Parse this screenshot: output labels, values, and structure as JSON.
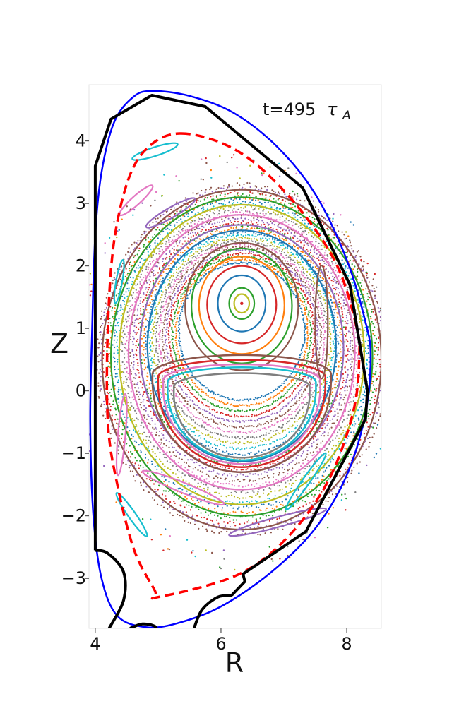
{
  "chart_data": {
    "type": "scatter",
    "xlabel": "R",
    "ylabel": "Z",
    "xlim": [
      3.9,
      8.55
    ],
    "ylim": [
      -3.8,
      4.9
    ],
    "x_ticks": [
      4,
      6,
      8
    ],
    "x_tick_labels": [
      "4",
      "6",
      "8"
    ],
    "y_ticks": [
      -3,
      -2,
      -1,
      0,
      1,
      2,
      3,
      4
    ],
    "y_tick_labels": [
      "−3",
      "−2",
      "−1",
      "0",
      "1",
      "2",
      "3",
      "4"
    ],
    "annotation": {
      "time": "t=495",
      "tau": "τ",
      "tau_sub": "A"
    },
    "grid": false,
    "legend": "none",
    "wall_color": "#000000",
    "last_closed_surface_color": "#ff0000",
    "plasma_boundary_color": "#0000ff",
    "magnetic_axis": [
      6.33,
      1.4
    ],
    "plasma_boundary": [
      [
        4.9,
        4.8
      ],
      [
        5.5,
        4.72
      ],
      [
        6.2,
        4.45
      ],
      [
        6.9,
        3.9
      ],
      [
        7.5,
        3.15
      ],
      [
        8.0,
        2.1
      ],
      [
        8.3,
        1.1
      ],
      [
        8.38,
        0.55
      ],
      [
        8.3,
        -0.35
      ],
      [
        8.0,
        -1.35
      ],
      [
        7.5,
        -2.2
      ],
      [
        6.8,
        -2.9
      ],
      [
        6.0,
        -3.45
      ],
      [
        5.3,
        -3.72
      ],
      [
        4.8,
        -3.78
      ],
      [
        4.35,
        -3.6
      ],
      [
        4.1,
        -3.0
      ],
      [
        3.97,
        -2.0
      ],
      [
        3.92,
        -0.5
      ],
      [
        3.95,
        1.0
      ],
      [
        4.0,
        2.5
      ],
      [
        4.1,
        3.5
      ],
      [
        4.3,
        4.3
      ],
      [
        4.6,
        4.7
      ],
      [
        4.9,
        4.8
      ]
    ],
    "wall": [
      [
        4.0,
        -2.55
      ],
      [
        4.0,
        3.6
      ],
      [
        4.25,
        4.35
      ],
      [
        4.9,
        4.73
      ],
      [
        5.75,
        4.55
      ],
      [
        7.3,
        3.25
      ],
      [
        8.05,
        1.7
      ],
      [
        8.33,
        0.0
      ],
      [
        8.3,
        -0.45
      ],
      [
        7.35,
        -2.25
      ],
      [
        6.35,
        -2.93
      ],
      [
        6.38,
        -3.05
      ],
      [
        6.17,
        -3.27
      ]
    ],
    "wall_dome": [
      [
        4.0,
        -2.55
      ],
      [
        4.2,
        -2.6
      ],
      [
        4.45,
        -2.9
      ],
      [
        4.45,
        -3.35
      ],
      [
        4.22,
        -3.8
      ]
    ],
    "wall_dome2": [
      [
        5.0,
        -3.9
      ],
      [
        4.95,
        -3.77
      ],
      [
        4.75,
        -3.73
      ],
      [
        4.55,
        -3.8
      ]
    ],
    "wall_dome3": [
      [
        6.17,
        -3.27
      ],
      [
        5.95,
        -3.3
      ],
      [
        5.7,
        -3.5
      ],
      [
        5.57,
        -3.8
      ]
    ],
    "last_closed_surface": [
      [
        5.37,
        4.12
      ],
      [
        6.05,
        3.95
      ],
      [
        6.65,
        3.55
      ],
      [
        7.3,
        2.85
      ],
      [
        7.85,
        2.0
      ],
      [
        8.15,
        1.05
      ],
      [
        8.2,
        0.55
      ],
      [
        8.1,
        -0.35
      ],
      [
        7.7,
        -1.45
      ],
      [
        7.05,
        -2.35
      ],
      [
        6.25,
        -2.95
      ],
      [
        5.0,
        -3.3
      ],
      [
        4.95,
        -3.2
      ],
      [
        4.62,
        -2.55
      ],
      [
        4.35,
        -1.5
      ],
      [
        4.2,
        -0.5
      ],
      [
        4.2,
        1.0
      ],
      [
        4.3,
        2.4
      ],
      [
        4.55,
        3.45
      ],
      [
        4.9,
        3.95
      ],
      [
        5.37,
        4.12
      ]
    ],
    "flux_surfaces": [
      {
        "r0": 6.33,
        "z0": 1.4,
        "a": 0.12,
        "b": 0.15,
        "color": "#bcbd22"
      },
      {
        "r0": 6.33,
        "z0": 1.4,
        "a": 0.2,
        "b": 0.25,
        "color": "#2ca02c"
      },
      {
        "r0": 6.33,
        "z0": 1.4,
        "a": 0.38,
        "b": 0.45,
        "color": "#1f77b4"
      },
      {
        "r0": 6.33,
        "z0": 1.38,
        "a": 0.55,
        "b": 0.62,
        "color": "#d62728"
      },
      {
        "r0": 6.33,
        "z0": 1.37,
        "a": 0.68,
        "b": 0.78,
        "color": "#ff7f0e"
      },
      {
        "r0": 6.33,
        "z0": 1.36,
        "a": 0.8,
        "b": 0.92,
        "color": "#2ca02c"
      },
      {
        "r0": 6.33,
        "z0": 1.35,
        "a": 0.9,
        "b": 1.02,
        "color": "#8c564b"
      },
      {
        "r0": 6.33,
        "z0": 0.72,
        "a": 1.5,
        "b": 1.85,
        "color": "#1f77b4"
      },
      {
        "r0": 6.33,
        "z0": 0.68,
        "a": 1.62,
        "b": 1.98,
        "color": "#9467bd"
      },
      {
        "r0": 6.33,
        "z0": 0.62,
        "a": 1.8,
        "b": 2.2,
        "color": "#e377c2"
      },
      {
        "r0": 6.33,
        "z0": 0.58,
        "a": 1.95,
        "b": 2.4,
        "color": "#bcbd22"
      },
      {
        "r0": 6.33,
        "z0": 0.55,
        "a": 2.08,
        "b": 2.55,
        "color": "#2ca02c"
      },
      {
        "r0": 6.33,
        "z0": 0.5,
        "a": 2.22,
        "b": 2.72,
        "color": "#8c564b"
      }
    ],
    "crescents": [
      {
        "r0": 6.33,
        "z0": -0.05,
        "a": 1.08,
        "b": 1.02,
        "color": "#7f7f7f"
      },
      {
        "r0": 6.33,
        "z0": 0.02,
        "a": 1.18,
        "b": 1.13,
        "color": "#17becf"
      },
      {
        "r0": 6.33,
        "z0": 0.05,
        "a": 1.25,
        "b": 1.22,
        "color": "#e377c2"
      },
      {
        "r0": 6.33,
        "z0": 0.1,
        "a": 1.33,
        "b": 1.32,
        "color": "#d62728"
      },
      {
        "r0": 6.33,
        "z0": 0.15,
        "a": 1.42,
        "b": 1.45,
        "color": "#8c564b"
      }
    ],
    "islands": [
      {
        "r0": 4.95,
        "z0": 3.83,
        "a": 0.38,
        "b": 0.07,
        "angle": -18,
        "color": "#17becf"
      },
      {
        "r0": 4.65,
        "z0": 3.05,
        "a": 0.35,
        "b": 0.07,
        "angle": -42,
        "color": "#e377c2"
      },
      {
        "r0": 5.2,
        "z0": 2.85,
        "a": 0.45,
        "b": 0.08,
        "angle": -30,
        "color": "#9467bd"
      },
      {
        "r0": 4.38,
        "z0": 1.75,
        "a": 0.35,
        "b": 0.05,
        "angle": -80,
        "color": "#17becf"
      },
      {
        "r0": 4.42,
        "z0": -0.7,
        "a": 0.65,
        "b": 0.06,
        "angle": 95,
        "color": "#e377c2"
      },
      {
        "r0": 4.58,
        "z0": -1.98,
        "a": 0.42,
        "b": 0.06,
        "angle": 55,
        "color": "#17becf"
      },
      {
        "r0": 5.4,
        "z0": -1.55,
        "a": 0.7,
        "b": 0.08,
        "angle": 22,
        "color": "#e377c2"
      },
      {
        "r0": 6.9,
        "z0": -2.1,
        "a": 0.8,
        "b": 0.08,
        "angle": -15,
        "color": "#9467bd"
      },
      {
        "r0": 7.35,
        "z0": -1.45,
        "a": 0.55,
        "b": 0.06,
        "angle": -55,
        "color": "#17becf"
      },
      {
        "r0": 7.6,
        "z0": 1.1,
        "a": 0.9,
        "b": 0.1,
        "angle": 90,
        "color": "#8c564b"
      }
    ],
    "point_colors": [
      "#1f77b4",
      "#ff7f0e",
      "#2ca02c",
      "#d62728",
      "#9467bd",
      "#8c564b",
      "#e377c2",
      "#7f7f7f",
      "#bcbd22",
      "#17becf"
    ]
  }
}
